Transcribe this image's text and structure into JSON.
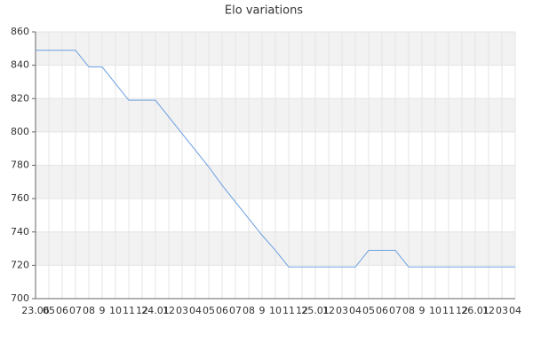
{
  "chart_data": {
    "type": "line",
    "title": "Elo variations",
    "categories": [
      "23.06",
      "05",
      "06",
      "07",
      "08",
      "9",
      "10",
      "11",
      "12",
      "24.01",
      "12",
      "03",
      "04",
      "05",
      "06",
      "07",
      "08",
      "9",
      "10",
      "11",
      "12",
      "25.01",
      "12",
      "03",
      "04",
      "05",
      "06",
      "07",
      "08",
      "9",
      "10",
      "11",
      "12",
      "26.01",
      "12",
      "03",
      "04"
    ],
    "series": [
      {
        "name": "Elo",
        "color": "#6a9fe0",
        "values": [
          849,
          849,
          849,
          849,
          839,
          839,
          829,
          819,
          819,
          819,
          809,
          799,
          789,
          779,
          768,
          758,
          748,
          738,
          729,
          719,
          719,
          719,
          719,
          719,
          719,
          729,
          729,
          729,
          719,
          719,
          719,
          719,
          719,
          719,
          719,
          719,
          719
        ]
      }
    ],
    "ylim": [
      700,
      860
    ],
    "yticks": [
      700,
      720,
      740,
      760,
      780,
      800,
      820,
      840,
      860
    ],
    "grid": true,
    "bands": true
  }
}
